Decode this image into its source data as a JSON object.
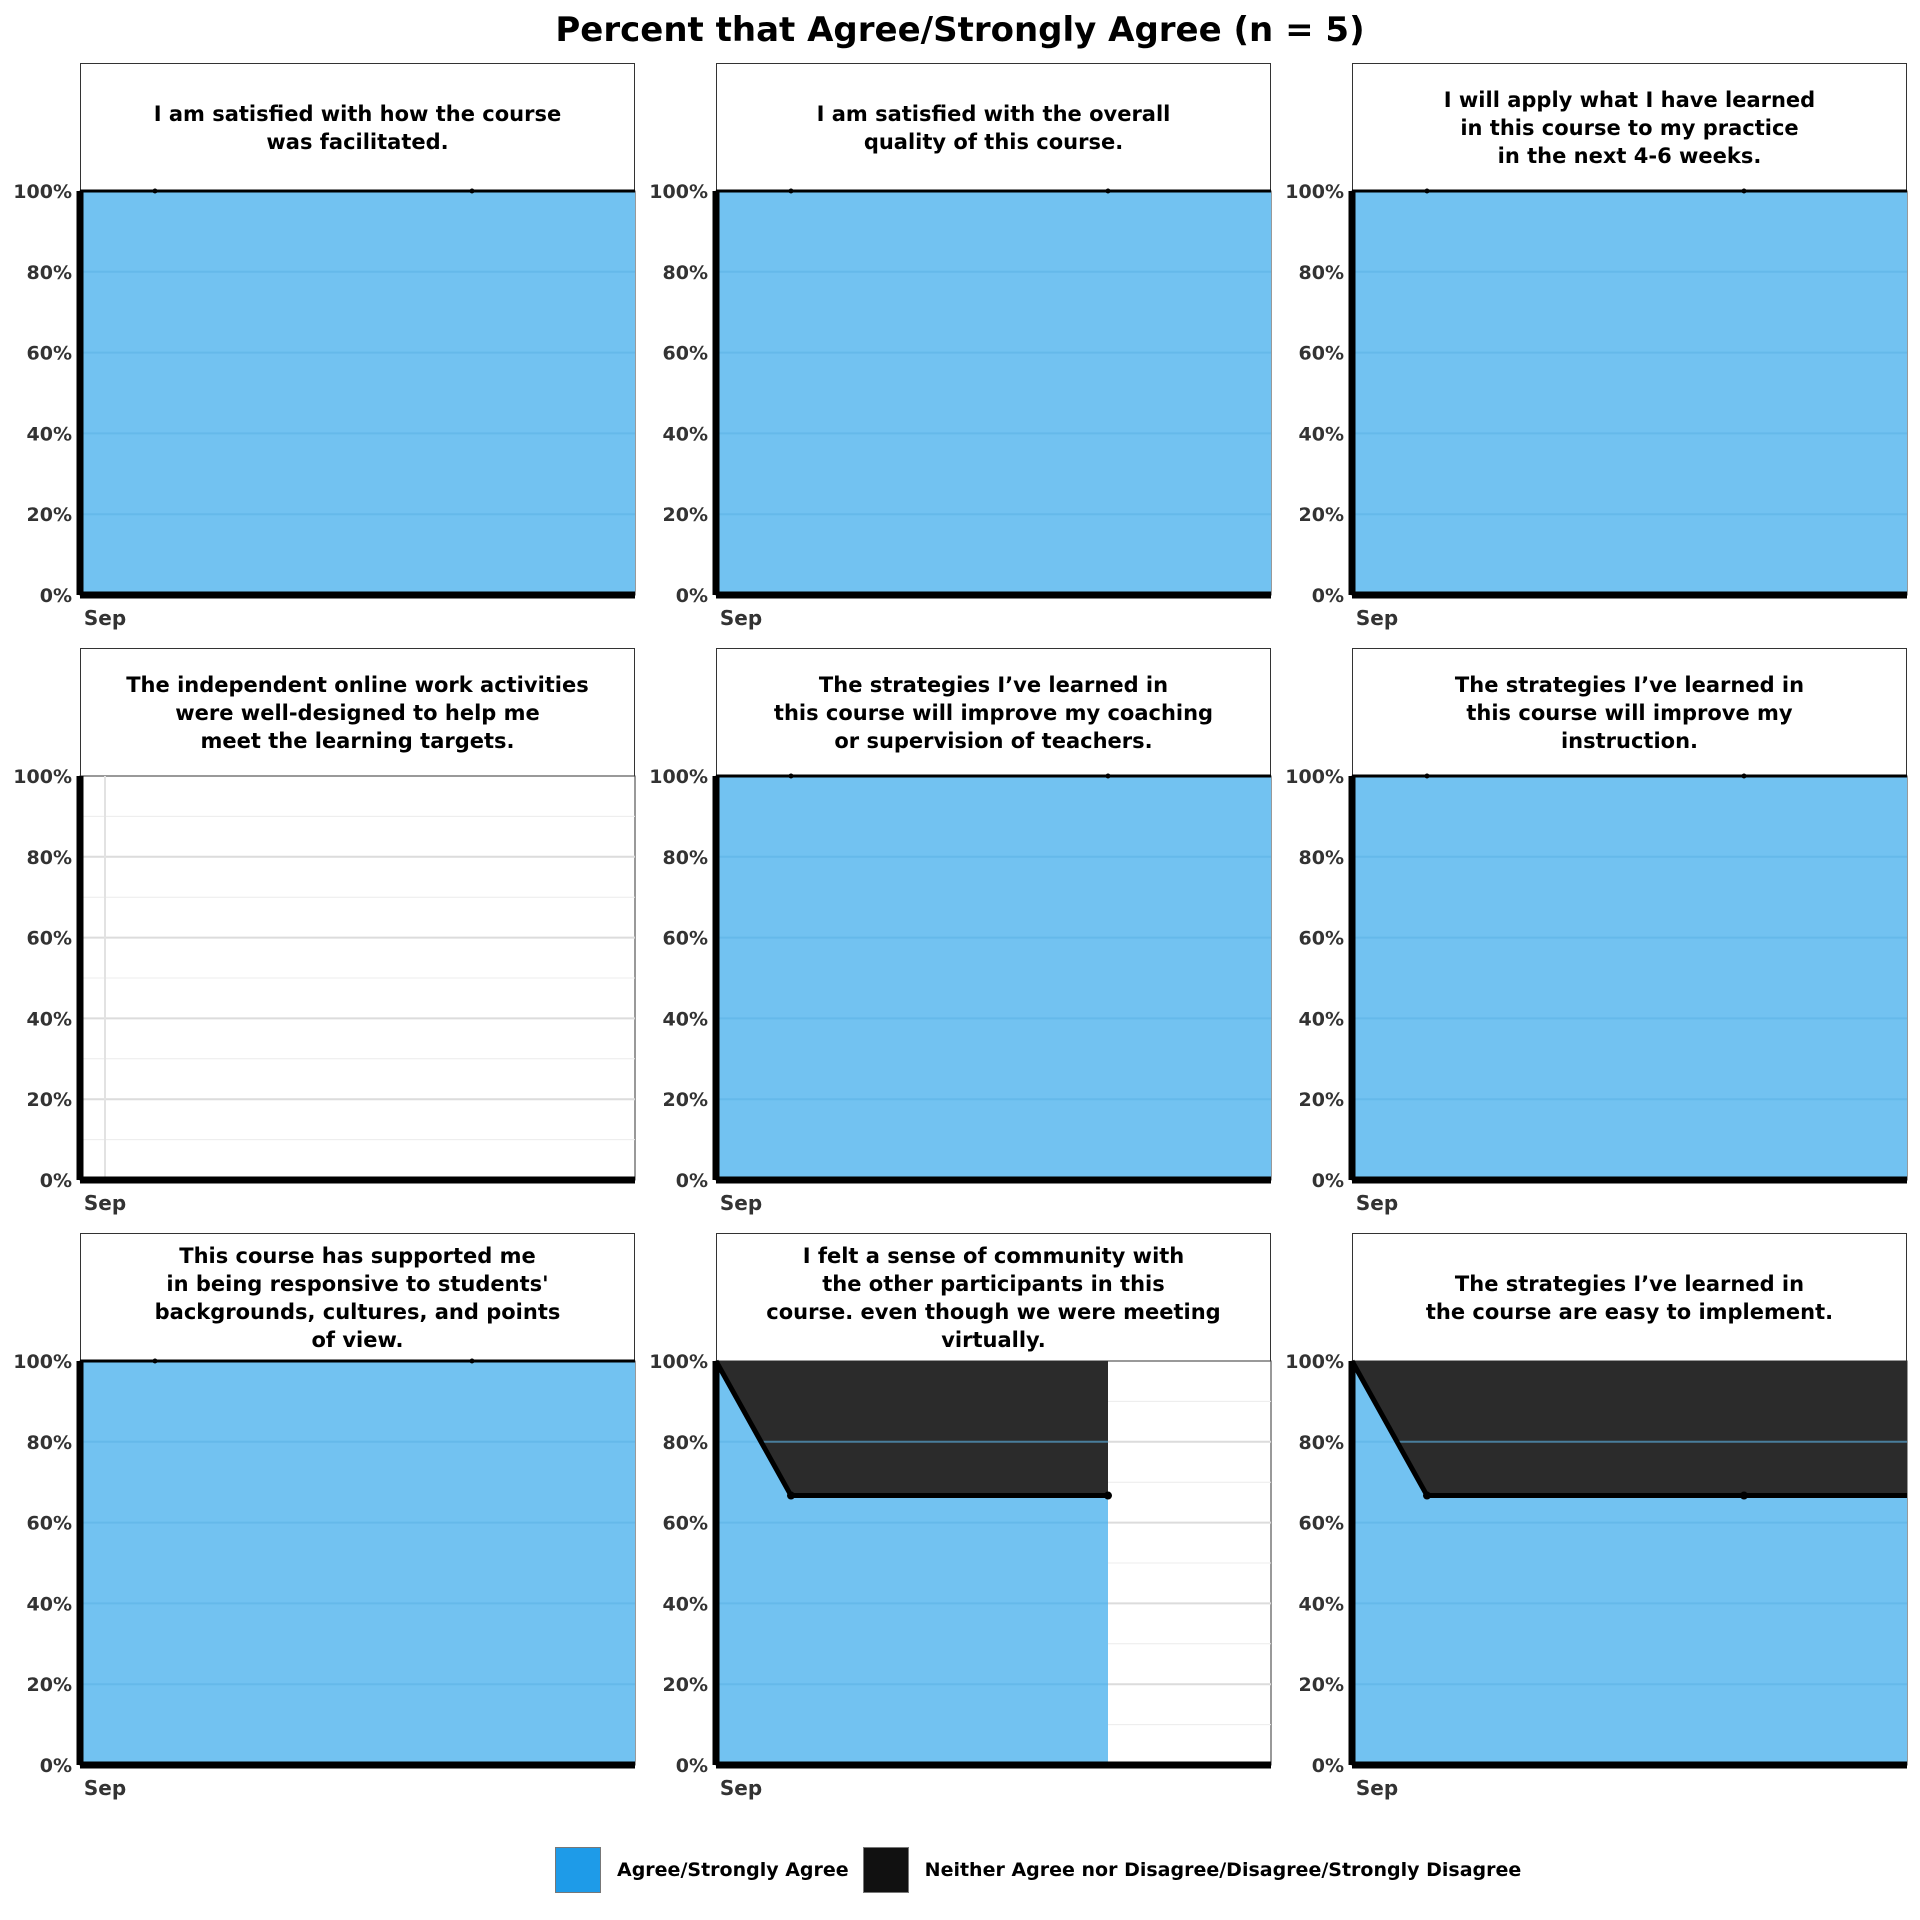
{
  "title": "Percent that Agree/Strongly Agree (n = 5)",
  "colors": {
    "agree": "#72c2f1",
    "agree_key": "#1e9be8",
    "disagree": "#2b2b2b",
    "disagree_key": "#111111"
  },
  "legend": [
    {
      "label": "Agree/Strongly Agree",
      "color_key": "agree_key"
    },
    {
      "label": "Neither Agree nor Disagree/Disagree/Strongly Disagree",
      "color_key": "disagree_key"
    }
  ],
  "chart_data": [
    {
      "type": "area",
      "title": "I am satisfied with how the course\nwas facilitated.",
      "x_tick_labels": [
        "Sep"
      ],
      "y_ticks": [
        "0%",
        "20%",
        "40%",
        "60%",
        "80%",
        "100%"
      ],
      "ylim": [
        0,
        100
      ],
      "series": [
        {
          "name": "Agree/Strongly Agree",
          "values": [
            100,
            100,
            100,
            100
          ]
        }
      ]
    },
    {
      "type": "area",
      "title": "I am satisfied with the overall\nquality of this course.",
      "x_tick_labels": [
        "Sep"
      ],
      "y_ticks": [
        "0%",
        "20%",
        "40%",
        "60%",
        "80%",
        "100%"
      ],
      "ylim": [
        0,
        100
      ],
      "series": [
        {
          "name": "Agree/Strongly Agree",
          "values": [
            100,
            100,
            100,
            100
          ]
        }
      ]
    },
    {
      "type": "area",
      "title": "I will apply what I have learned\nin this course to my practice\nin the next 4-6 weeks.",
      "x_tick_labels": [
        "Sep"
      ],
      "y_ticks": [
        "0%",
        "20%",
        "40%",
        "60%",
        "80%",
        "100%"
      ],
      "ylim": [
        0,
        100
      ],
      "series": [
        {
          "name": "Agree/Strongly Agree",
          "values": [
            100,
            100,
            100,
            100
          ]
        }
      ]
    },
    {
      "type": "area",
      "title": "The independent online work activities\nwere well-designed to help me\nmeet the learning targets.",
      "x_tick_labels": [
        "Sep"
      ],
      "y_ticks": [
        "0%",
        "20%",
        "40%",
        "60%",
        "80%",
        "100%"
      ],
      "ylim": [
        0,
        100
      ],
      "series": []
    },
    {
      "type": "area",
      "title": "The strategies I’ve learned in\nthis course will improve my coaching\nor supervision of teachers.",
      "x_tick_labels": [
        "Sep"
      ],
      "y_ticks": [
        "0%",
        "20%",
        "40%",
        "60%",
        "80%",
        "100%"
      ],
      "ylim": [
        0,
        100
      ],
      "series": [
        {
          "name": "Agree/Strongly Agree",
          "values": [
            100,
            100,
            100,
            100
          ]
        }
      ]
    },
    {
      "type": "area",
      "title": "The strategies I’ve learned in\nthis course will improve my instruction.",
      "x_tick_labels": [
        "Sep"
      ],
      "y_ticks": [
        "0%",
        "20%",
        "40%",
        "60%",
        "80%",
        "100%"
      ],
      "ylim": [
        0,
        100
      ],
      "series": [
        {
          "name": "Agree/Strongly Agree",
          "values": [
            100,
            100,
            100,
            100
          ]
        }
      ]
    },
    {
      "type": "area",
      "title": "This course has supported me\nin being responsive to students'\nbackgrounds, cultures, and points\nof view.",
      "x_tick_labels": [
        "Sep"
      ],
      "y_ticks": [
        "0%",
        "20%",
        "40%",
        "60%",
        "80%",
        "100%"
      ],
      "ylim": [
        0,
        100
      ],
      "series": [
        {
          "name": "Agree/Strongly Agree",
          "values": [
            100,
            100,
            100,
            100
          ]
        }
      ]
    },
    {
      "type": "area",
      "title": "I felt a sense of community with\nthe other participants in this\ncourse. even though we were meeting\nvirtually.",
      "x_tick_labels": [
        "Sep"
      ],
      "y_ticks": [
        "0%",
        "20%",
        "40%",
        "60%",
        "80%",
        "100%"
      ],
      "ylim": [
        0,
        100
      ],
      "series": [
        {
          "name": "Agree/Strongly Agree",
          "values": [
            100,
            66.7,
            66.7
          ]
        }
      ]
    },
    {
      "type": "area",
      "title": "The strategies I’ve learned in\nthe course are easy to implement.",
      "x_tick_labels": [
        "Sep"
      ],
      "y_ticks": [
        "0%",
        "20%",
        "40%",
        "60%",
        "80%",
        "100%"
      ],
      "ylim": [
        0,
        100
      ],
      "series": [
        {
          "name": "Agree/Strongly Agree",
          "values": [
            100,
            66.7,
            66.7,
            66.7
          ]
        }
      ]
    }
  ]
}
